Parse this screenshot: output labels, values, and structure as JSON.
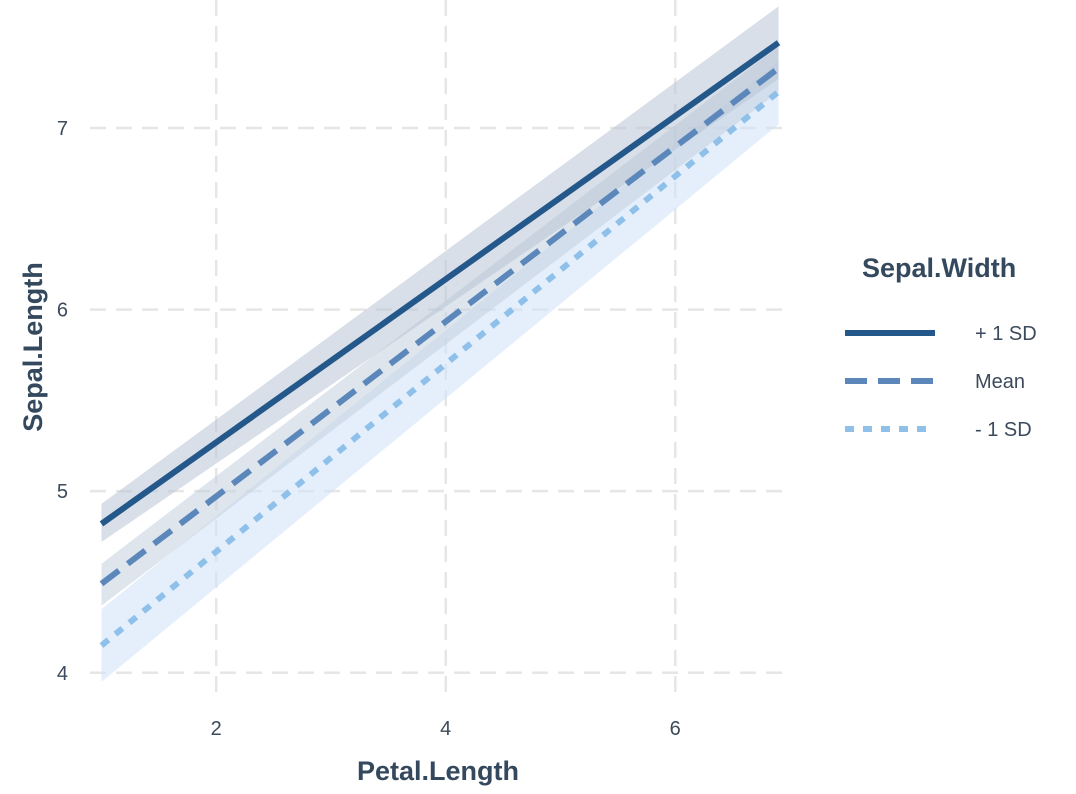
{
  "chart_data": {
    "type": "line",
    "xlabel": "Petal.Length",
    "ylabel": "Sepal.Length",
    "xlim": [
      0.9,
      7.0
    ],
    "ylim": [
      3.85,
      7.65
    ],
    "x_ticks": [
      "2",
      "4",
      "6"
    ],
    "x_tick_values": [
      2,
      4,
      6
    ],
    "y_ticks": [
      "4",
      "5",
      "6",
      "7"
    ],
    "y_tick_values": [
      4,
      5,
      6,
      7
    ],
    "grid": true,
    "legend": {
      "title": "Sepal.Width",
      "position": "right"
    },
    "series": [
      {
        "name": "+ 1 SD",
        "x": [
          1.0,
          6.9
        ],
        "y": [
          4.82,
          7.47
        ],
        "ci_lower": [
          4.72,
          7.27
        ],
        "ci_upper": [
          4.93,
          7.67
        ],
        "line_style": "solid",
        "color": "#24578a",
        "band_color": "#b8c4d6"
      },
      {
        "name": "Mean",
        "x": [
          1.0,
          6.9
        ],
        "y": [
          4.49,
          7.33
        ],
        "ci_lower": [
          4.37,
          7.2
        ],
        "ci_upper": [
          4.6,
          7.45
        ],
        "line_style": "dashed",
        "color": "#5b87bb",
        "band_color": "#c3cfde"
      },
      {
        "name": "- 1 SD",
        "x": [
          1.0,
          6.9
        ],
        "y": [
          4.15,
          7.2
        ],
        "ci_lower": [
          3.95,
          7.02
        ],
        "ci_upper": [
          4.35,
          7.37
        ],
        "line_style": "dotted",
        "color": "#8ec0ea",
        "band_color": "#cfe2f8"
      }
    ]
  }
}
